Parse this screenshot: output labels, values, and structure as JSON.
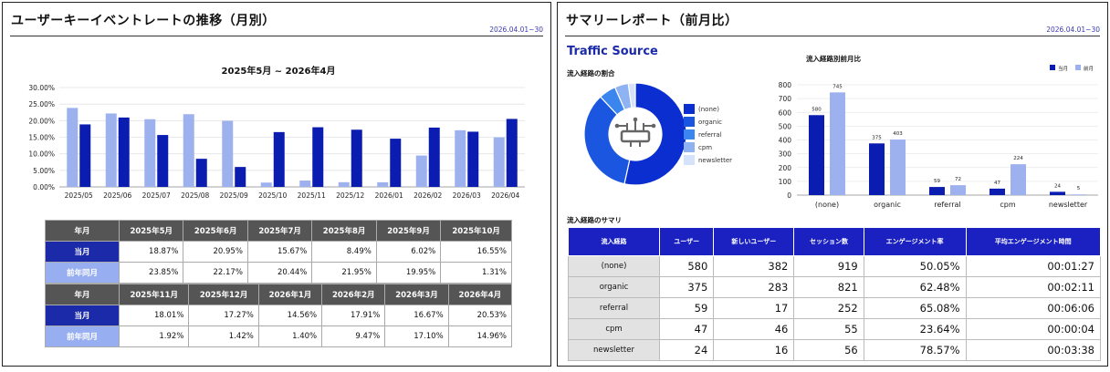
{
  "left": {
    "title": "ユーザーキーイベントレートの推移（月別）",
    "date": "2026.04.01~30",
    "chart_title": "2025年5月 ~ 2026年4月",
    "table_header_label": "年月",
    "row1_label": "当月",
    "row2_label": "前年同月",
    "table1": {
      "months": [
        "2025年5月",
        "2025年6月",
        "2025年7月",
        "2025年8月",
        "2025年9月",
        "2025年10月"
      ],
      "current": [
        "18.87%",
        "20.95%",
        "15.67%",
        "8.49%",
        "6.02%",
        "16.55%"
      ],
      "prev": [
        "23.85%",
        "22.17%",
        "20.44%",
        "21.95%",
        "19.95%",
        "1.31%"
      ]
    },
    "table2": {
      "months": [
        "2025年11月",
        "2025年12月",
        "2026年1月",
        "2026年2月",
        "2026年3月",
        "2026年4月"
      ],
      "current": [
        "18.01%",
        "17.27%",
        "14.56%",
        "17.91%",
        "16.67%",
        "20.53%"
      ],
      "prev": [
        "1.92%",
        "1.42%",
        "1.40%",
        "9.47%",
        "17.10%",
        "14.96%"
      ]
    }
  },
  "right": {
    "title": "サマリーレポート（前月比）",
    "date": "2026.04.01~30",
    "traffic_source": "Traffic Source",
    "pie_caption": "流入経路の割合",
    "bar_caption": "流入経路別前月比",
    "summary_caption": "流入経路のサマリ",
    "legend_current": "当月",
    "legend_prev": "前月",
    "table": {
      "headers": [
        "流入経路",
        "ユーザー",
        "新しいユーザー",
        "セッション数",
        "エンゲージメント率",
        "平均エンゲージメント時間"
      ],
      "rows": [
        [
          "(none)",
          "580",
          "382",
          "919",
          "50.05%",
          "00:01:27"
        ],
        [
          "organic",
          "375",
          "283",
          "821",
          "62.48%",
          "00:02:11"
        ],
        [
          "referral",
          "59",
          "17",
          "252",
          "65.08%",
          "00:06:06"
        ],
        [
          "cpm",
          "47",
          "46",
          "55",
          "23.64%",
          "00:00:04"
        ],
        [
          "newsletter",
          "24",
          "16",
          "56",
          "78.57%",
          "00:03:38"
        ]
      ]
    }
  },
  "colors": {
    "dark_blue": "#0b1db0",
    "light_blue": "#9db1ef",
    "header_gray": "#555555",
    "table_header_blue": "#1a21c0",
    "pie": [
      "#0b2ed0",
      "#1a56e0",
      "#3b86ee",
      "#8fb2f2",
      "#d5e2fa"
    ]
  },
  "icons": [
    "hub-network-icon"
  ],
  "chart_data": [
    {
      "type": "bar",
      "title": "2025年5月 ~ 2026年4月",
      "categories": [
        "2025/05",
        "2025/06",
        "2025/07",
        "2025/08",
        "2025/09",
        "2025/10",
        "2025/11",
        "2025/12",
        "2026/01",
        "2026/02",
        "2026/03",
        "2026/04"
      ],
      "series": [
        {
          "values": [
            23.85,
            22.17,
            20.44,
            21.95,
            19.95,
            1.31,
            1.92,
            1.42,
            1.4,
            9.47,
            17.1,
            14.96
          ],
          "color": "#9db1ef"
        },
        {
          "values": [
            18.87,
            20.95,
            15.67,
            8.49,
            6.02,
            16.55,
            18.01,
            17.27,
            14.56,
            17.91,
            16.67,
            20.53
          ],
          "color": "#0b1db0"
        }
      ],
      "yticks": [
        "0.00%",
        "5.00%",
        "10.00%",
        "15.00%",
        "20.00%",
        "25.00%",
        "30.00%"
      ],
      "ylim": [
        0,
        30
      ],
      "grid": true
    },
    {
      "type": "pie",
      "title": "流入経路の割合",
      "labels": [
        "(none)",
        "organic",
        "referral",
        "cpm",
        "newsletter"
      ],
      "values": [
        580,
        375,
        59,
        47,
        24
      ],
      "donut": true
    },
    {
      "type": "bar",
      "title": "流入経路別前月比",
      "categories": [
        "(none)",
        "organic",
        "referral",
        "cpm",
        "newsletter"
      ],
      "series": [
        {
          "name": "当月",
          "values": [
            580,
            375,
            59,
            47,
            24
          ],
          "color": "#0b1db0"
        },
        {
          "name": "前月",
          "values": [
            745,
            403,
            72,
            224,
            5
          ],
          "color": "#9db1ef"
        }
      ],
      "yticks": [
        "0",
        "100",
        "200",
        "300",
        "400",
        "500",
        "600",
        "700",
        "800"
      ],
      "ylim": [
        0,
        800
      ],
      "legend": "top-right",
      "grid": true
    }
  ]
}
